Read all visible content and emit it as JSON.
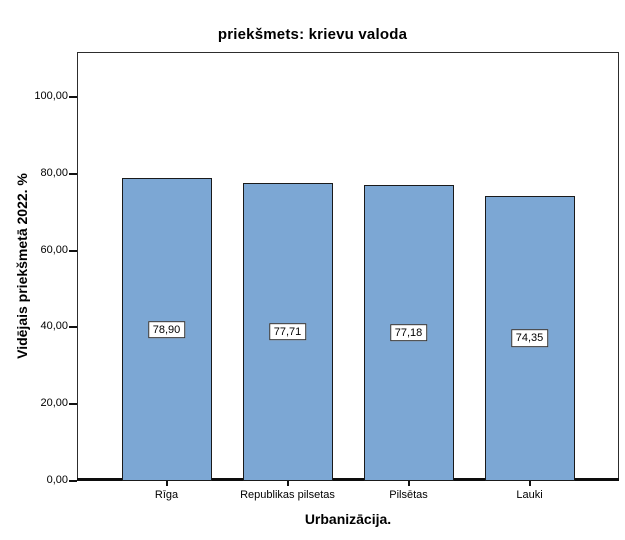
{
  "chart_data": {
    "type": "bar",
    "title": "priekšmets: krievu valoda",
    "xlabel": "Urbanizācija.",
    "ylabel": "Vidējais priekšmetā 2022. %",
    "categories": [
      "Rīga",
      "Republikas pilsetas",
      "Pilsētas",
      "Lauki"
    ],
    "values": [
      78.9,
      77.71,
      77.18,
      74.35
    ],
    "value_labels": [
      "78,90",
      "77,71",
      "77,18",
      "74,35"
    ],
    "yticks": [
      0,
      20,
      40,
      60,
      80,
      100
    ],
    "ytick_labels": [
      "0,00",
      "20,00",
      "40,00",
      "60,00",
      "80,00",
      "100,00"
    ],
    "ylim": [
      0,
      111.7
    ],
    "grid": false,
    "legend_position": "none",
    "bar_fill_color": "#7CA7D4",
    "bar_border_color": "#1a1a1a",
    "axis_line_color": "#0d0d0d",
    "frame_color": "#2d2d2d"
  }
}
